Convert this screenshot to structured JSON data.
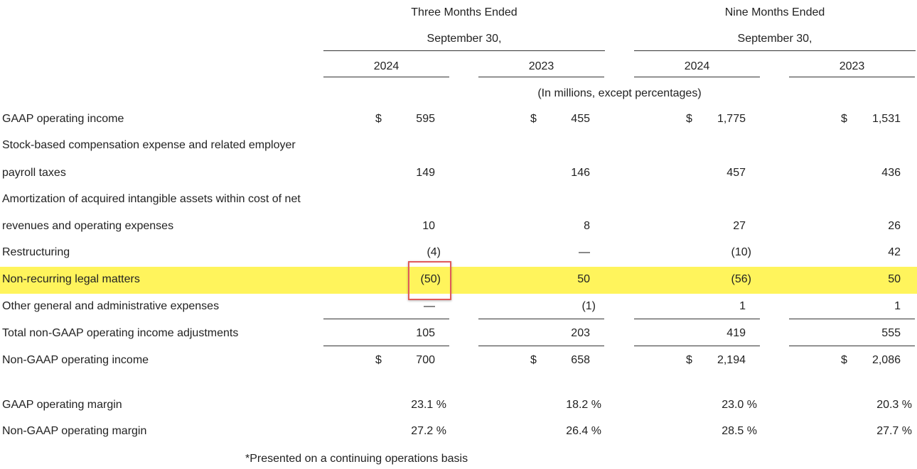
{
  "header": {
    "three_months": "Three Months Ended",
    "nine_months": "Nine Months Ended",
    "date": "September 30,",
    "years": [
      "2024",
      "2023",
      "2024",
      "2023"
    ],
    "units": "(In millions, except percentages)"
  },
  "rows": [
    {
      "label": "GAAP operating income",
      "dollar": true,
      "values": [
        "595",
        "455",
        "1,775",
        "1,531"
      ]
    },
    {
      "label": "Stock-based compensation expense and related employer",
      "values": []
    },
    {
      "label": "payroll taxes",
      "values": [
        "149",
        "146",
        "457",
        "436"
      ]
    },
    {
      "label": "Amortization of acquired intangible assets within cost of net",
      "values": []
    },
    {
      "label": "revenues and operating expenses",
      "values": [
        "10",
        "8",
        "27",
        "26"
      ]
    },
    {
      "label": "Restructuring",
      "values": [
        "(4)",
        "—",
        "(10)",
        "42"
      ]
    },
    {
      "label": "Non-recurring legal matters",
      "highlighted": true,
      "values": [
        "(50)",
        "50",
        "(56)",
        "50"
      ]
    },
    {
      "label": "Other general and administrative expenses",
      "values": [
        "—",
        "(1)",
        "1",
        "1"
      ]
    },
    {
      "label": "Total non-GAAP operating income adjustments",
      "values": [
        "105",
        "203",
        "419",
        "555"
      ]
    },
    {
      "label": "Non-GAAP operating income",
      "dollar": true,
      "values": [
        "700",
        "658",
        "2,194",
        "2,086"
      ]
    },
    {
      "label": "GAAP operating margin",
      "values": [
        "23.1 %",
        "18.2 %",
        "23.0 %",
        "20.3 %"
      ]
    },
    {
      "label": "Non-GAAP operating margin",
      "values": [
        "27.2 %",
        "26.4 %",
        "28.5 %",
        "27.7 %"
      ]
    }
  ],
  "dollar_sign": "$",
  "footnote": "*Presented on a continuing operations basis",
  "colors": {
    "highlight": "#fff45c",
    "callout_box": "#e05a5a"
  }
}
